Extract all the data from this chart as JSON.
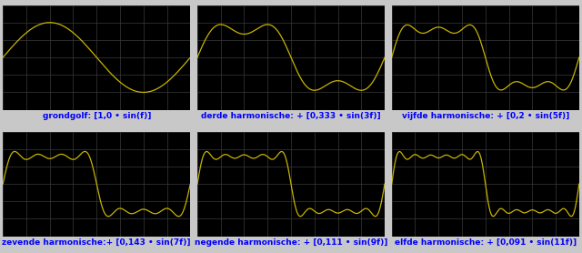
{
  "titles": [
    "grondgolf: [1,0 • sin(f)]",
    "derde harmonische: + [0,333 • sin(3f)]",
    "vijfde harmonische: + [0,2 • sin(5f)]",
    "zevende harmonische:+ [0,143 • sin(7f)]",
    "negende harmonische: + [0,111 • sin(9f)]",
    "elfde harmonische: + [0,091 • sin(11f)]"
  ],
  "harmonics": [
    [
      1
    ],
    [
      1,
      3
    ],
    [
      1,
      3,
      5
    ],
    [
      1,
      3,
      5,
      7
    ],
    [
      1,
      3,
      5,
      7,
      9
    ],
    [
      1,
      3,
      5,
      7,
      9,
      11
    ]
  ],
  "amplitudes": [
    1.0,
    0.333,
    0.2,
    0.143,
    0.111,
    0.091
  ],
  "line_color": "#c8b400",
  "bg_color": "#000000",
  "grid_color": "#3a3a3a",
  "title_color": "#0000ff",
  "title_fontsize": 6.5,
  "fig_bg": "#c8c8c8",
  "ylim": [
    -1.5,
    1.5
  ],
  "n_xgrid": 8,
  "n_ygrid": 6
}
